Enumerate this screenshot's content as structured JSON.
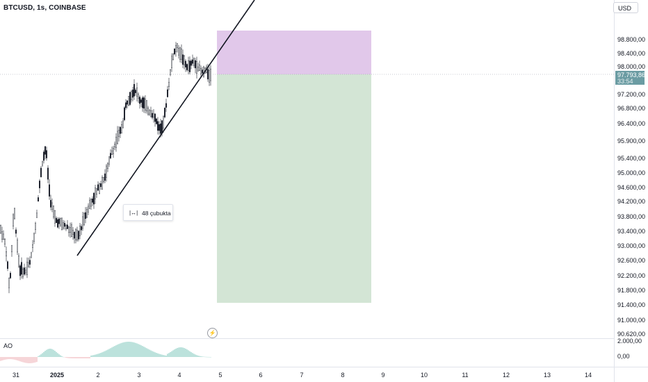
{
  "header": {
    "symbol_title": "BTCUSD, 1s, COINBASE",
    "currency": "USD"
  },
  "price_axis": {
    "labels": [
      "98.800,00",
      "98.400,00",
      "98.000,00",
      "97.200,00",
      "96.800,00",
      "96.400,00",
      "95.900,00",
      "95.400,00",
      "95.000,00",
      "94.600,00",
      "94.200,00",
      "93.800,00",
      "93.400,00",
      "93.000,00",
      "92.600,00",
      "92.200,00",
      "91.800,00",
      "91.400,00",
      "91.000,00",
      "90.620,00"
    ]
  },
  "current_price": {
    "value": "97.793,86",
    "countdown": "33:54"
  },
  "time_axis": {
    "labels": [
      "31",
      "2025",
      "2",
      "3",
      "4",
      "5",
      "6",
      "7",
      "8",
      "9",
      "10",
      "11",
      "12",
      "13",
      "14"
    ]
  },
  "measure_tool": {
    "icon": "range-icon",
    "text": "48 çubukta"
  },
  "indicator": {
    "name": "AO",
    "top_label": "2.000,00",
    "zero_label": "0,00"
  },
  "colors": {
    "candle": "#131722",
    "trendline": "#131722",
    "target_zone": "#e1c8ea",
    "stop_zone": "#d3e5d5",
    "ao_up": "#8fcfc5",
    "ao_down": "#f0b9bf",
    "badge": "#6b9ca3"
  }
}
